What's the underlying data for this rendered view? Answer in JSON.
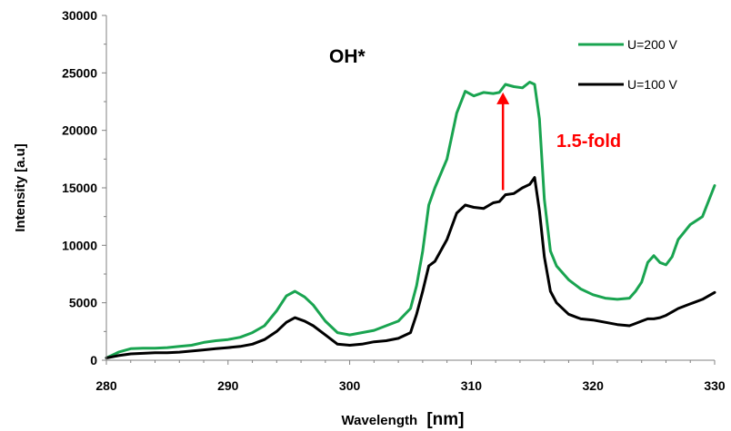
{
  "chart_data": {
    "type": "line",
    "title": "",
    "annotation_species": "OH*",
    "annotation_fold": "1.5-fold",
    "xlabel": "Wavelength",
    "xlabel_unit": "[nm]",
    "ylabel": "Intensity [a.u]",
    "xlim": [
      280,
      330
    ],
    "ylim": [
      0,
      30000
    ],
    "x_ticks": [
      280,
      290,
      300,
      310,
      320,
      330
    ],
    "y_ticks": [
      0,
      5000,
      10000,
      15000,
      20000,
      25000,
      30000
    ],
    "grid": false,
    "legend_position": "top-right",
    "arrow": {
      "x": 312.6,
      "y_from": 14800,
      "y_to": 23300
    },
    "series": [
      {
        "name": "U=200 V",
        "color": "#19a450",
        "x": [
          280,
          281,
          282,
          283,
          284,
          285,
          286,
          287,
          288,
          289,
          290,
          291,
          292,
          293,
          294,
          294.8,
          295.5,
          296.3,
          297,
          298,
          299,
          300,
          301,
          302,
          303,
          304,
          305,
          305.5,
          306,
          306.5,
          307,
          308,
          308.8,
          309.5,
          310.2,
          311,
          311.8,
          312.3,
          312.8,
          313.5,
          314.2,
          314.8,
          315.2,
          315.6,
          316,
          316.5,
          317,
          318,
          319,
          320,
          321,
          322,
          323,
          323.5,
          324,
          324.5,
          325,
          325.5,
          326,
          326.5,
          327,
          328,
          329,
          330
        ],
        "values": [
          200,
          700,
          1000,
          1050,
          1050,
          1100,
          1200,
          1300,
          1550,
          1700,
          1800,
          2000,
          2400,
          3000,
          4300,
          5600,
          6000,
          5500,
          4800,
          3400,
          2400,
          2200,
          2400,
          2600,
          3000,
          3400,
          4500,
          6500,
          9500,
          13500,
          15000,
          17500,
          21500,
          23400,
          23000,
          23300,
          23200,
          23300,
          24000,
          23800,
          23700,
          24200,
          24000,
          21000,
          14000,
          9500,
          8200,
          7000,
          6200,
          5700,
          5400,
          5300,
          5400,
          6000,
          6800,
          8500,
          9100,
          8500,
          8300,
          9000,
          10500,
          11800,
          12500,
          15200
        ]
      },
      {
        "name": "U=100 V",
        "color": "#000000",
        "x": [
          280,
          281,
          282,
          283,
          284,
          285,
          286,
          287,
          288,
          289,
          290,
          291,
          292,
          293,
          294,
          294.8,
          295.5,
          296.3,
          297,
          298,
          299,
          300,
          301,
          302,
          303,
          304,
          305,
          305.5,
          306,
          306.5,
          307,
          308,
          308.8,
          309.5,
          310.2,
          311,
          311.8,
          312.3,
          312.8,
          313.5,
          314.2,
          314.8,
          315.2,
          315.6,
          316,
          316.5,
          317,
          318,
          319,
          320,
          321,
          322,
          323,
          323.5,
          324,
          324.5,
          325,
          325.5,
          326,
          326.5,
          327,
          328,
          329,
          330
        ],
        "values": [
          200,
          400,
          550,
          600,
          650,
          650,
          700,
          800,
          900,
          1000,
          1100,
          1200,
          1400,
          1800,
          2500,
          3300,
          3700,
          3400,
          3000,
          2200,
          1400,
          1300,
          1400,
          1600,
          1700,
          1900,
          2400,
          4000,
          6000,
          8200,
          8600,
          10500,
          12800,
          13500,
          13300,
          13200,
          13700,
          13800,
          14400,
          14500,
          15000,
          15300,
          15900,
          13000,
          9000,
          6000,
          5000,
          4000,
          3600,
          3500,
          3300,
          3100,
          3000,
          3200,
          3400,
          3600,
          3600,
          3700,
          3900,
          4200,
          4500,
          4900,
          5300,
          5900
        ]
      }
    ]
  }
}
